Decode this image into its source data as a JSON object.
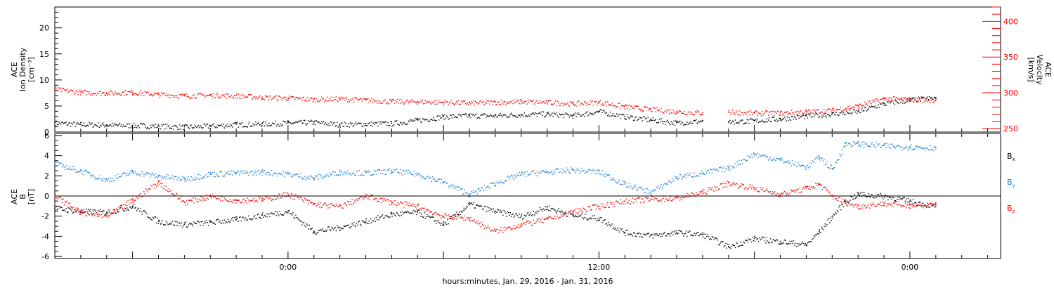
{
  "chart_data": [
    {
      "type": "scatter",
      "panel": "top",
      "ylabel_left": [
        "ACE",
        "Ion Density",
        "[cm⁻³]"
      ],
      "ylabel_right": [
        "ACE",
        "Velocity",
        "[km/s]"
      ],
      "left_ylim": [
        0,
        24
      ],
      "left_ticks": [
        0,
        5,
        10,
        15,
        20
      ],
      "right_ylim": [
        245,
        420
      ],
      "right_ticks": [
        250,
        300,
        350,
        400
      ],
      "x_hours_range": [
        -18,
        55
      ],
      "series": [
        {
          "name": "",
          "axis": "left",
          "color": "#000000",
          "x": [
            -18,
            -16,
            -14,
            -12,
            -10,
            -8,
            -6,
            -4,
            -2,
            0,
            2,
            4,
            6,
            8,
            10,
            12,
            14,
            16,
            18,
            20,
            22,
            24,
            26,
            28,
            30,
            32
          ],
          "values": [
            1.8,
            1.5,
            1.4,
            1.3,
            1.2,
            1.0,
            1.2,
            1.5,
            1.6,
            1.8,
            1.9,
            1.5,
            1.6,
            1.7,
            2.3,
            3.0,
            3.2,
            3.2,
            3.4,
            3.5,
            3.2,
            4.0,
            3.0,
            2.4,
            1.8,
            2.2
          ]
        },
        {
          "name": "",
          "axis": "right",
          "color": "#ff0000",
          "x": [
            -18,
            -16,
            -14,
            -12,
            -10,
            -8,
            -6,
            -4,
            -2,
            0,
            2,
            4,
            6,
            8,
            10,
            12,
            14,
            16,
            18,
            20,
            22,
            24,
            26,
            28,
            30,
            32
          ],
          "values": [
            305,
            301,
            300,
            301,
            298,
            296,
            297,
            296,
            294,
            293,
            291,
            292,
            290,
            288,
            288,
            287,
            286,
            287,
            288,
            287,
            285,
            287,
            281,
            277,
            274,
            272
          ]
        },
        {
          "name": "",
          "axis": "left",
          "color": "#000000",
          "x": [
            34,
            36,
            38,
            40,
            42,
            44,
            46,
            48,
            50
          ],
          "values": [
            2.0,
            2.2,
            2.6,
            3.1,
            3.5,
            4.0,
            5.5,
            6.2,
            6.6
          ]
        },
        {
          "name": "",
          "axis": "right",
          "color": "#ff0000",
          "x": [
            34,
            36,
            38,
            40,
            42,
            44,
            46,
            48,
            50
          ],
          "values": [
            273,
            272,
            272,
            274,
            276,
            282,
            292,
            291,
            290
          ]
        }
      ]
    },
    {
      "type": "scatter",
      "panel": "bottom",
      "ylabel": [
        "ACE",
        "B",
        "[nT]"
      ],
      "ylim": [
        -6.2,
        6.2
      ],
      "y_ticks": [
        -6,
        -4,
        -2,
        0,
        2,
        4,
        6
      ],
      "x_ticks": [
        "0:00",
        "12:00",
        "0:00"
      ],
      "x_tick_hours": [
        0,
        24,
        48
      ],
      "x_hours_range": [
        -18,
        55
      ],
      "xlabel": "hours:minutes, Jan. 29, 2016 - Jan. 31, 2016",
      "legend": [
        "B",
        "B",
        "B"
      ],
      "legend_subscripts": [
        "x",
        "y",
        "z"
      ],
      "legend_colors": [
        "#000000",
        "#1f7fd8",
        "#ff0000"
      ],
      "legend_position": "right",
      "series": [
        {
          "name": "B_x",
          "color": "#000000",
          "x": [
            -18,
            -16,
            -14,
            -12,
            -10,
            -8,
            -6,
            -4,
            -2,
            0,
            2,
            4,
            6,
            8,
            10,
            12,
            14,
            16,
            18,
            20,
            22,
            24,
            26,
            28,
            30,
            32,
            34,
            36,
            38,
            40,
            41,
            42,
            43,
            44,
            46,
            48,
            50
          ],
          "values": [
            -1.2,
            -1.5,
            -1.6,
            -1.0,
            -2.5,
            -2.8,
            -2.6,
            -2.3,
            -1.9,
            -1.5,
            -3.5,
            -3.1,
            -2.5,
            -1.8,
            -1.6,
            -2.8,
            -0.8,
            -1.5,
            -2.0,
            -1.1,
            -1.9,
            -2.2,
            -3.6,
            -3.9,
            -3.6,
            -3.8,
            -5.0,
            -4.2,
            -4.5,
            -4.8,
            -3.5,
            -2.0,
            -0.5,
            0.2,
            0.0,
            -0.5,
            -1.0
          ]
        },
        {
          "name": "B_y",
          "color": "#1f7fd8",
          "x": [
            -18,
            -16,
            -14,
            -12,
            -10,
            -8,
            -6,
            -4,
            -2,
            0,
            2,
            4,
            6,
            8,
            10,
            12,
            14,
            16,
            18,
            20,
            22,
            24,
            26,
            28,
            30,
            32,
            34,
            36,
            38,
            40,
            41,
            42,
            43,
            44,
            46,
            48,
            50
          ],
          "values": [
            3.2,
            2.5,
            1.6,
            2.4,
            2.0,
            1.7,
            2.2,
            2.3,
            2.4,
            2.2,
            1.8,
            2.4,
            2.3,
            2.5,
            2.2,
            1.4,
            0.2,
            1.3,
            2.2,
            2.4,
            2.6,
            2.4,
            1.2,
            0.4,
            1.9,
            2.3,
            2.8,
            4.2,
            3.6,
            2.9,
            3.9,
            2.7,
            5.2,
            5.2,
            5.0,
            4.9,
            4.8
          ]
        },
        {
          "name": "B_z",
          "color": "#ff0000",
          "x": [
            -18,
            -16,
            -14,
            -12,
            -10,
            -8,
            -6,
            -4,
            -2,
            0,
            2,
            4,
            6,
            8,
            10,
            12,
            14,
            16,
            18,
            20,
            22,
            24,
            26,
            28,
            30,
            32,
            34,
            36,
            38,
            40,
            41,
            42,
            43,
            44,
            46,
            48,
            50
          ],
          "values": [
            0.0,
            -1.6,
            -2.0,
            -0.4,
            1.4,
            -0.6,
            0.0,
            -0.4,
            -0.3,
            0.2,
            -0.8,
            -1.0,
            0.0,
            -0.6,
            -1.0,
            -2.0,
            -2.2,
            -3.5,
            -2.8,
            -2.3,
            -1.5,
            -1.0,
            -0.5,
            -0.3,
            -0.2,
            0.4,
            1.3,
            0.8,
            0.2,
            0.8,
            1.2,
            0.0,
            -0.6,
            -1.0,
            -0.7,
            -0.9,
            -0.8
          ]
        }
      ],
      "zero_line": true
    }
  ]
}
